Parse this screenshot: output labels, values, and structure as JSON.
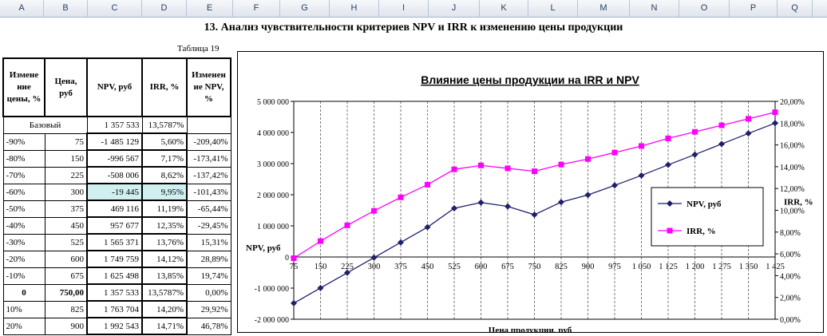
{
  "columns": [
    "A",
    "B",
    "C",
    "D",
    "E",
    "F",
    "G",
    "H",
    "I",
    "J",
    "K",
    "L",
    "M",
    "N",
    "O",
    "P",
    "Q"
  ],
  "title": "13. Анализ чувствительности критериев NPV и IRR к изменению цены продукции",
  "table_number": "Таблица 19",
  "table": {
    "headers": [
      "Измене ние цены, %",
      "Цена, руб",
      "NPV, руб",
      "IRR, %",
      "Изменен ие NPV, %"
    ],
    "base_row": {
      "label": "Базовый",
      "npv": "1 357 533",
      "irr": "13,5787%"
    },
    "rows": [
      [
        "-90%",
        "75",
        "-1 485 129",
        "5,60%",
        "-209,40%"
      ],
      [
        "-80%",
        "150",
        "-996 567",
        "7,17%",
        "-173,41%"
      ],
      [
        "-70%",
        "225",
        "-508 006",
        "8,62%",
        "-137,42%"
      ],
      [
        "-60%",
        "300",
        "-19 445",
        "9,95%",
        "-101,43%"
      ],
      [
        "-50%",
        "375",
        "469 116",
        "11,19%",
        "-65,44%"
      ],
      [
        "-40%",
        "450",
        "957 677",
        "12,35%",
        "-29,45%"
      ],
      [
        "-30%",
        "525",
        "1 565 371",
        "13,76%",
        "15,31%"
      ],
      [
        "-20%",
        "600",
        "1 749 759",
        "14,12%",
        "28,89%"
      ],
      [
        "-10%",
        "675",
        "1 625 498",
        "13,85%",
        "19,74%"
      ],
      [
        "0",
        "750,00",
        "1 357 533",
        "13,5787%",
        "0,00%"
      ],
      [
        "10%",
        "825",
        "1 763 704",
        "14,20%",
        "29,92%"
      ],
      [
        "20%",
        "900",
        "1 992 543",
        "14,71%",
        "46,78%"
      ]
    ]
  },
  "chart_data": {
    "type": "line",
    "title": "Влияние цены продукции на IRR и NPV",
    "xlabel": "Цена продукции, руб",
    "ylabel": "NPV, руб",
    "y2label": "IRR, %",
    "categories": [
      "75",
      "150",
      "225",
      "300",
      "375",
      "450",
      "525",
      "600",
      "675",
      "750",
      "825",
      "900",
      "975",
      "1 050",
      "1 125",
      "1 200",
      "1 275",
      "1 350",
      "1 425"
    ],
    "ylim": [
      -2000000,
      5000000
    ],
    "y2lim": [
      0,
      20
    ],
    "y_ticks": [
      "5 000 000",
      "4 000 000",
      "3 000 000",
      "2 000 000",
      "1 000 000",
      "0",
      "-1 000 000",
      "-2 000 000"
    ],
    "y2_ticks": [
      "20,00%",
      "18,00%",
      "16,00%",
      "14,00%",
      "12,00%",
      "10,00%",
      "8,00%",
      "6,00%",
      "4,00%",
      "2,00%",
      "0,00%"
    ],
    "series": [
      {
        "name": "NPV, руб",
        "axis": "left",
        "color": "#1f1f6e",
        "values": [
          -1485129,
          -996567,
          -508006,
          -19445,
          469116,
          957677,
          1565371,
          1749759,
          1625498,
          1357533,
          1763704,
          1992543,
          2300000,
          2620000,
          2960000,
          3290000,
          3630000,
          3970000,
          4300000
        ]
      },
      {
        "name": "IRR, %",
        "axis": "right",
        "color": "#ff00ff",
        "values": [
          5.6,
          7.17,
          8.62,
          9.95,
          11.19,
          12.35,
          13.76,
          14.12,
          13.85,
          13.58,
          14.2,
          14.71,
          15.3,
          15.9,
          16.6,
          17.2,
          17.8,
          18.4,
          19.0
        ]
      }
    ],
    "legend_position": "right"
  }
}
